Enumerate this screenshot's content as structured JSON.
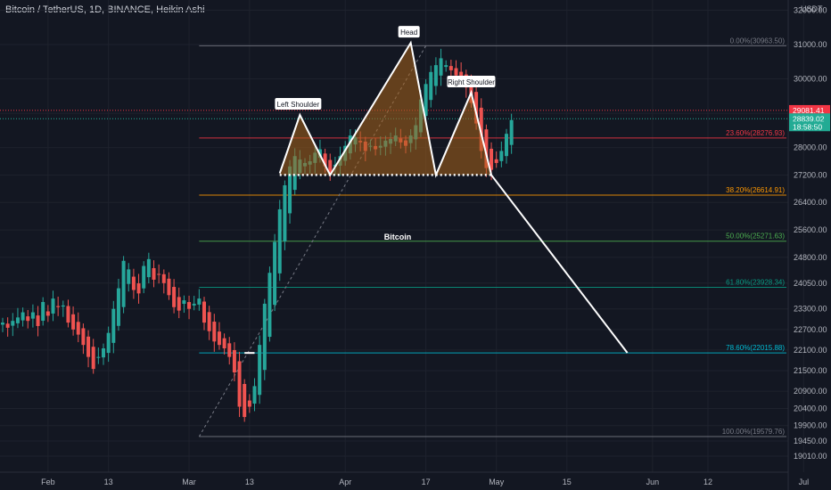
{
  "header": {
    "title": "Bitcoin / TetherUS, 1D, BINANCE, Heikin Ashi"
  },
  "price_axis": {
    "unit": "USDT",
    "labels": [
      "32000.00",
      "31000.00",
      "30000.00",
      "29000.00",
      "28000.00",
      "27200.00",
      "26400.00",
      "25600.00",
      "24800.00",
      "24050.00",
      "23300.00",
      "22700.00",
      "22100.00",
      "21500.00",
      "20900.00",
      "20400.00",
      "19900.00",
      "19450.00",
      "19010.00"
    ],
    "badges": [
      {
        "text": "29081.41",
        "color": "#f23645"
      },
      {
        "text": "28839.02",
        "color": "#22ab94"
      },
      {
        "text": "18:58:50",
        "color": "#22ab94"
      }
    ]
  },
  "time_axis": {
    "labels": [
      "Feb",
      "13",
      "Mar",
      "13",
      "Apr",
      "17",
      "May",
      "15",
      "Jun",
      "12",
      "Jul"
    ]
  },
  "colors": {
    "background": "#131722",
    "up": "#26a69a",
    "down": "#ef5350",
    "pattern_fill": "#a8631a",
    "pattern_line": "#ffffff"
  },
  "fib_levels": [
    {
      "label": "0.00%(30963.50)",
      "price": 30963.5,
      "color": "#787b86"
    },
    {
      "label": "23.60%(28276.93)",
      "price": 28276.93,
      "color": "#f23645"
    },
    {
      "label": "38.20%(26614.91)",
      "price": 26614.91,
      "color": "#ff9800"
    },
    {
      "label": "50.00%(25271.63)",
      "price": 25271.63,
      "color": "#4caf50"
    },
    {
      "label": "61.80%(23928.34)",
      "price": 23928.34,
      "color": "#089981"
    },
    {
      "label": "78.60%(22015.88)",
      "price": 22015.88,
      "color": "#00bcd4"
    },
    {
      "label": "100.00%(19579.76)",
      "price": 19579.76,
      "color": "#787b86"
    }
  ],
  "annotations": {
    "left_shoulder": "Left Shoulder",
    "head": "Head",
    "right_shoulder": "Right Shoulder",
    "center_label": "Bitcoin"
  },
  "chart_data": {
    "type": "candlestick",
    "title": "Bitcoin / TetherUS, 1D, BINANCE, Heikin Ashi",
    "ylabel": "USDT",
    "ylim": [
      18800,
      32300
    ],
    "x_ticks": [
      "Feb",
      "13",
      "Mar",
      "13",
      "Apr",
      "17",
      "May",
      "15",
      "Jun",
      "12",
      "Jul"
    ],
    "close_series": [
      22900,
      22750,
      22950,
      23050,
      23200,
      22950,
      23200,
      22800,
      23500,
      23100,
      23600,
      23350,
      23400,
      22900,
      22700,
      22550,
      22250,
      21900,
      21550,
      21900,
      22150,
      22600,
      23300,
      23900,
      24700,
      24450,
      23850,
      23750,
      24550,
      24750,
      24150,
      24300,
      24050,
      23700,
      23350,
      23250,
      23550,
      23300,
      23450,
      23600,
      22900,
      22650,
      22350,
      22250,
      22150,
      21900,
      21450,
      20450,
      20150,
      20450,
      21050,
      22250,
      23450,
      24350,
      25250,
      26200,
      26900,
      27450,
      27750,
      27650,
      27550,
      27600,
      27850,
      27950,
      27450,
      27250,
      27500,
      27750,
      28050,
      28350,
      28300,
      28150,
      27900,
      28050,
      27950,
      28050,
      28200,
      28250,
      28350,
      28150,
      28050,
      28350,
      28650,
      29400,
      29850,
      30200,
      30400,
      30600,
      30400,
      30250,
      30100,
      30050,
      29750,
      29300,
      28700,
      27900,
      27400,
      27350,
      27550,
      27900,
      28400,
      28800
    ],
    "pattern_points": [
      {
        "label": "left_neck",
        "date": "2023-03-19",
        "price": 27250
      },
      {
        "label": "Left Shoulder",
        "date": "2023-03-23",
        "price": 28950
      },
      {
        "label": "mid_low_1",
        "date": "2023-03-29",
        "price": 27200
      },
      {
        "label": "Head",
        "date": "2023-04-14",
        "price": 31050
      },
      {
        "label": "mid_low_2",
        "date": "2023-04-19",
        "price": 27200
      },
      {
        "label": "Right Shoulder",
        "date": "2023-04-26",
        "price": 29600
      },
      {
        "label": "right_neck",
        "date": "2023-04-30",
        "price": 27200
      }
    ],
    "neckline_price": 27200,
    "projection": [
      {
        "date": "2023-04-30",
        "price": 27200
      },
      {
        "date": "2023-05-27",
        "price": 22020
      }
    ],
    "fib_range": [
      19579.76,
      30963.5
    ]
  }
}
